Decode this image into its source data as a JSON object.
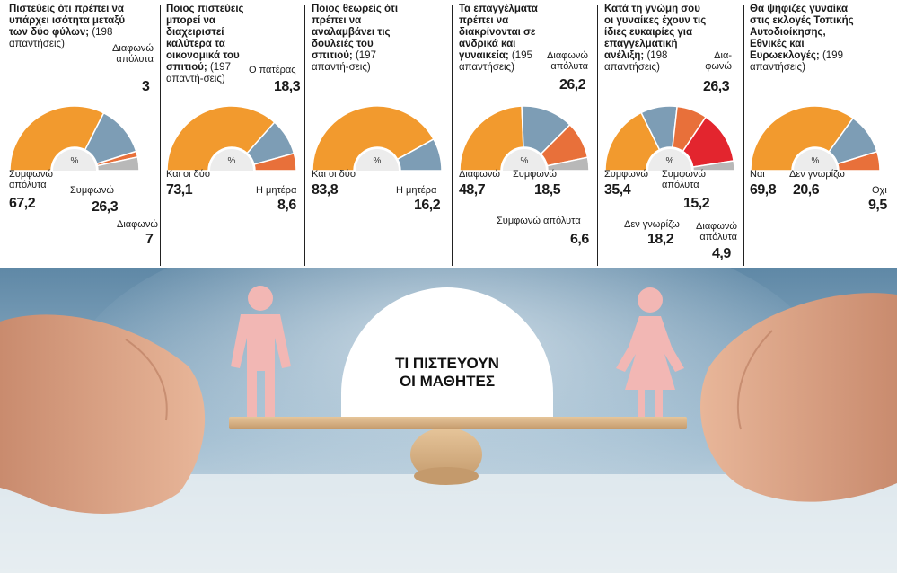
{
  "colors": {
    "orange": "#f29a2e",
    "blue": "#7d9db5",
    "red_orange": "#e8703a",
    "grey": "#b8b8b8",
    "red": "#e3252e",
    "pink": "#f2b7b4"
  },
  "chart_data": [
    {
      "type": "pie",
      "shape": "half-donut",
      "title": "Πιστεύεις ότι πρέπει να υπάρχει ισότητα μεταξύ των δύο φύλων;",
      "subtitle": "(198 απαντήσεις)",
      "unit": "%",
      "slices": [
        {
          "label": "Συμφωνώ απόλυτα",
          "value": 67.2,
          "value_text": "67,2",
          "color": "orange"
        },
        {
          "label": "Συμφωνώ",
          "value": 26.3,
          "value_text": "26,3",
          "color": "blue"
        },
        {
          "label": "Διαφωνώ απόλυτα",
          "value": 3,
          "value_text": "3",
          "color": "red_orange"
        },
        {
          "label": "Διαφωνώ",
          "value": 7,
          "value_text": "7",
          "color": "grey"
        }
      ]
    },
    {
      "type": "pie",
      "shape": "half-donut",
      "title": "Ποιος πιστεύεις μπορεί να διαχειριστεί καλύτερα τα οικονομικά του σπιτιού;",
      "subtitle": "(197 απαντή-σεις)",
      "unit": "%",
      "slices": [
        {
          "label": "Και οι δύο",
          "value": 73.1,
          "value_text": "73,1",
          "color": "orange"
        },
        {
          "label": "Ο πατέρας",
          "value": 18.3,
          "value_text": "18,3",
          "color": "blue"
        },
        {
          "label": "Η μητέρα",
          "value": 8.6,
          "value_text": "8,6",
          "color": "red_orange"
        }
      ]
    },
    {
      "type": "pie",
      "shape": "half-donut",
      "title": "Ποιος θεωρείς ότι πρέπει να αναλαμβάνει τις δουλειές του σπιτιού;",
      "subtitle": "(197 απαντή-σεις)",
      "unit": "%",
      "slices": [
        {
          "label": "Και οι δύο",
          "value": 83.8,
          "value_text": "83,8",
          "color": "orange"
        },
        {
          "label": "Η μητέρα",
          "value": 16.2,
          "value_text": "16,2",
          "color": "blue"
        }
      ]
    },
    {
      "type": "pie",
      "shape": "half-donut",
      "title": "Τα επαγγέλματα πρέπει να διακρίνονται σε ανδρικά και γυναικεία;",
      "subtitle": "(195 απαντήσεις)",
      "unit": "%",
      "slices": [
        {
          "label": "Διαφωνώ",
          "value": 48.7,
          "value_text": "48,7",
          "color": "orange"
        },
        {
          "label": "Διαφωνώ απόλυτα",
          "value": 26.2,
          "value_text": "26,2",
          "color": "blue"
        },
        {
          "label": "Συμφωνώ",
          "value": 18.5,
          "value_text": "18,5",
          "color": "red_orange"
        },
        {
          "label": "Συμφωνώ απόλυτα",
          "value": 6.6,
          "value_text": "6,6",
          "color": "grey"
        }
      ]
    },
    {
      "type": "pie",
      "shape": "half-donut",
      "title": "Κατά τη γνώμη σου οι γυναίκες έχουν τις ίδιες ευκαιρίες για επαγγελματική ανέλιξη;",
      "subtitle": "(198 απαντήσεις)",
      "unit": "%",
      "slices": [
        {
          "label": "Συμφωνώ",
          "value": 35.4,
          "value_text": "35,4",
          "color": "orange"
        },
        {
          "label": "Δεν γνωρίζω",
          "value": 18.2,
          "value_text": "18,2",
          "color": "blue"
        },
        {
          "label": "Συμφωνώ απόλυτα",
          "value": 15.2,
          "value_text": "15,2",
          "color": "red_orange"
        },
        {
          "label": "Δια-φωνώ",
          "value": 26.3,
          "value_text": "26,3",
          "color": "red"
        },
        {
          "label": "Διαφωνώ απόλυτα",
          "value": 4.9,
          "value_text": "4,9",
          "color": "grey"
        }
      ]
    },
    {
      "type": "pie",
      "shape": "half-donut",
      "title": "Θα ψήφιζες γυναίκα στις εκλογές Τοπικής Αυτοδιοίκησης, Εθνικές και Ευρωεκλογές;",
      "subtitle": "(199 απαντήσεις)",
      "unit": "%",
      "slices": [
        {
          "label": "Ναι",
          "value": 69.8,
          "value_text": "69,8",
          "color": "orange"
        },
        {
          "label": "Δεν γνωρίζω",
          "value": 20.6,
          "value_text": "20,6",
          "color": "blue"
        },
        {
          "label": "Οχι",
          "value": 9.5,
          "value_text": "9,5",
          "color": "red_orange"
        }
      ]
    }
  ],
  "banner": {
    "title_line1": "ΤΙ ΠΙΣΤΕΥΟΥΝ",
    "title_line2": "ΟΙ ΜΑΘΗΤΕΣ"
  }
}
